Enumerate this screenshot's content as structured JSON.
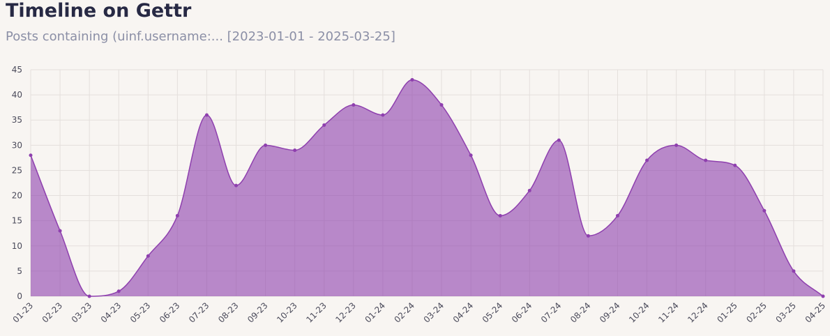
{
  "chart_data": {
    "type": "area",
    "title": "Timeline on Gettr",
    "subtitle": "Posts containing (uinf.username:... [2023-01-01 - 2025-03-25]",
    "categories": [
      "01-23",
      "02-23",
      "03-23",
      "04-23",
      "05-23",
      "06-23",
      "07-23",
      "08-23",
      "09-23",
      "10-23",
      "11-23",
      "12-23",
      "01-24",
      "02-24",
      "03-24",
      "04-24",
      "05-24",
      "06-24",
      "07-24",
      "08-24",
      "09-24",
      "10-24",
      "11-24",
      "12-24",
      "01-25",
      "02-25",
      "03-25",
      "04-25"
    ],
    "values": [
      28,
      13,
      0,
      1,
      8,
      16,
      36,
      22,
      30,
      29,
      34,
      38,
      36,
      43,
      38,
      28,
      16,
      21,
      31,
      12,
      16,
      27,
      30,
      27,
      26,
      17,
      5,
      0
    ],
    "color": "#8e3fae",
    "ylim": [
      0,
      45
    ],
    "yticks": [
      0,
      5,
      10,
      15,
      20,
      25,
      30,
      35,
      40,
      45
    ],
    "grid": true
  }
}
